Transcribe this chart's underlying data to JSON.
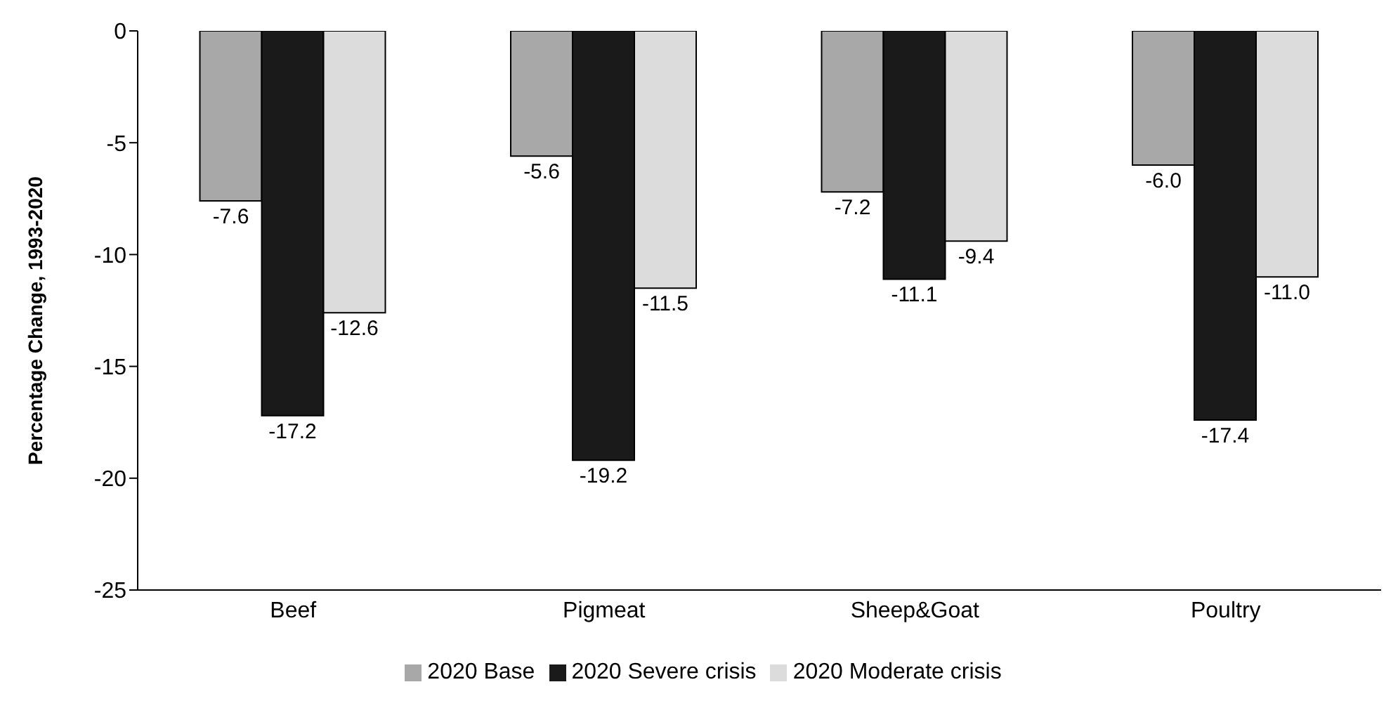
{
  "chart_data": {
    "type": "bar",
    "ylabel": "Percentage Change, 1993-2020",
    "categories": [
      "Beef",
      "Pigmeat",
      "Sheep&Goat",
      "Poultry"
    ],
    "series": [
      {
        "name": "2020 Base",
        "color": "#a8a8a8",
        "values": [
          -7.6,
          -5.6,
          -7.2,
          -6.0
        ],
        "value_labels": [
          "-7.6",
          "-5.6",
          "-7.2",
          "-6.0"
        ]
      },
      {
        "name": "2020 Severe crisis",
        "color": "#1a1a1a",
        "values": [
          -17.2,
          -19.2,
          -11.1,
          -17.4
        ],
        "value_labels": [
          "-17.2",
          "-19.2",
          "-11.1",
          "-17.4"
        ]
      },
      {
        "name": "2020 Moderate crisis",
        "color": "#dcdcdc",
        "values": [
          -12.6,
          -11.5,
          -9.4,
          -11.0
        ],
        "value_labels": [
          "-12.6",
          "-11.5",
          "-9.4",
          "-11.0"
        ]
      }
    ],
    "ylim": [
      -25,
      0
    ],
    "yticks": [
      -25,
      -20,
      -15,
      -10,
      -5,
      0
    ],
    "legend": "bottom"
  }
}
